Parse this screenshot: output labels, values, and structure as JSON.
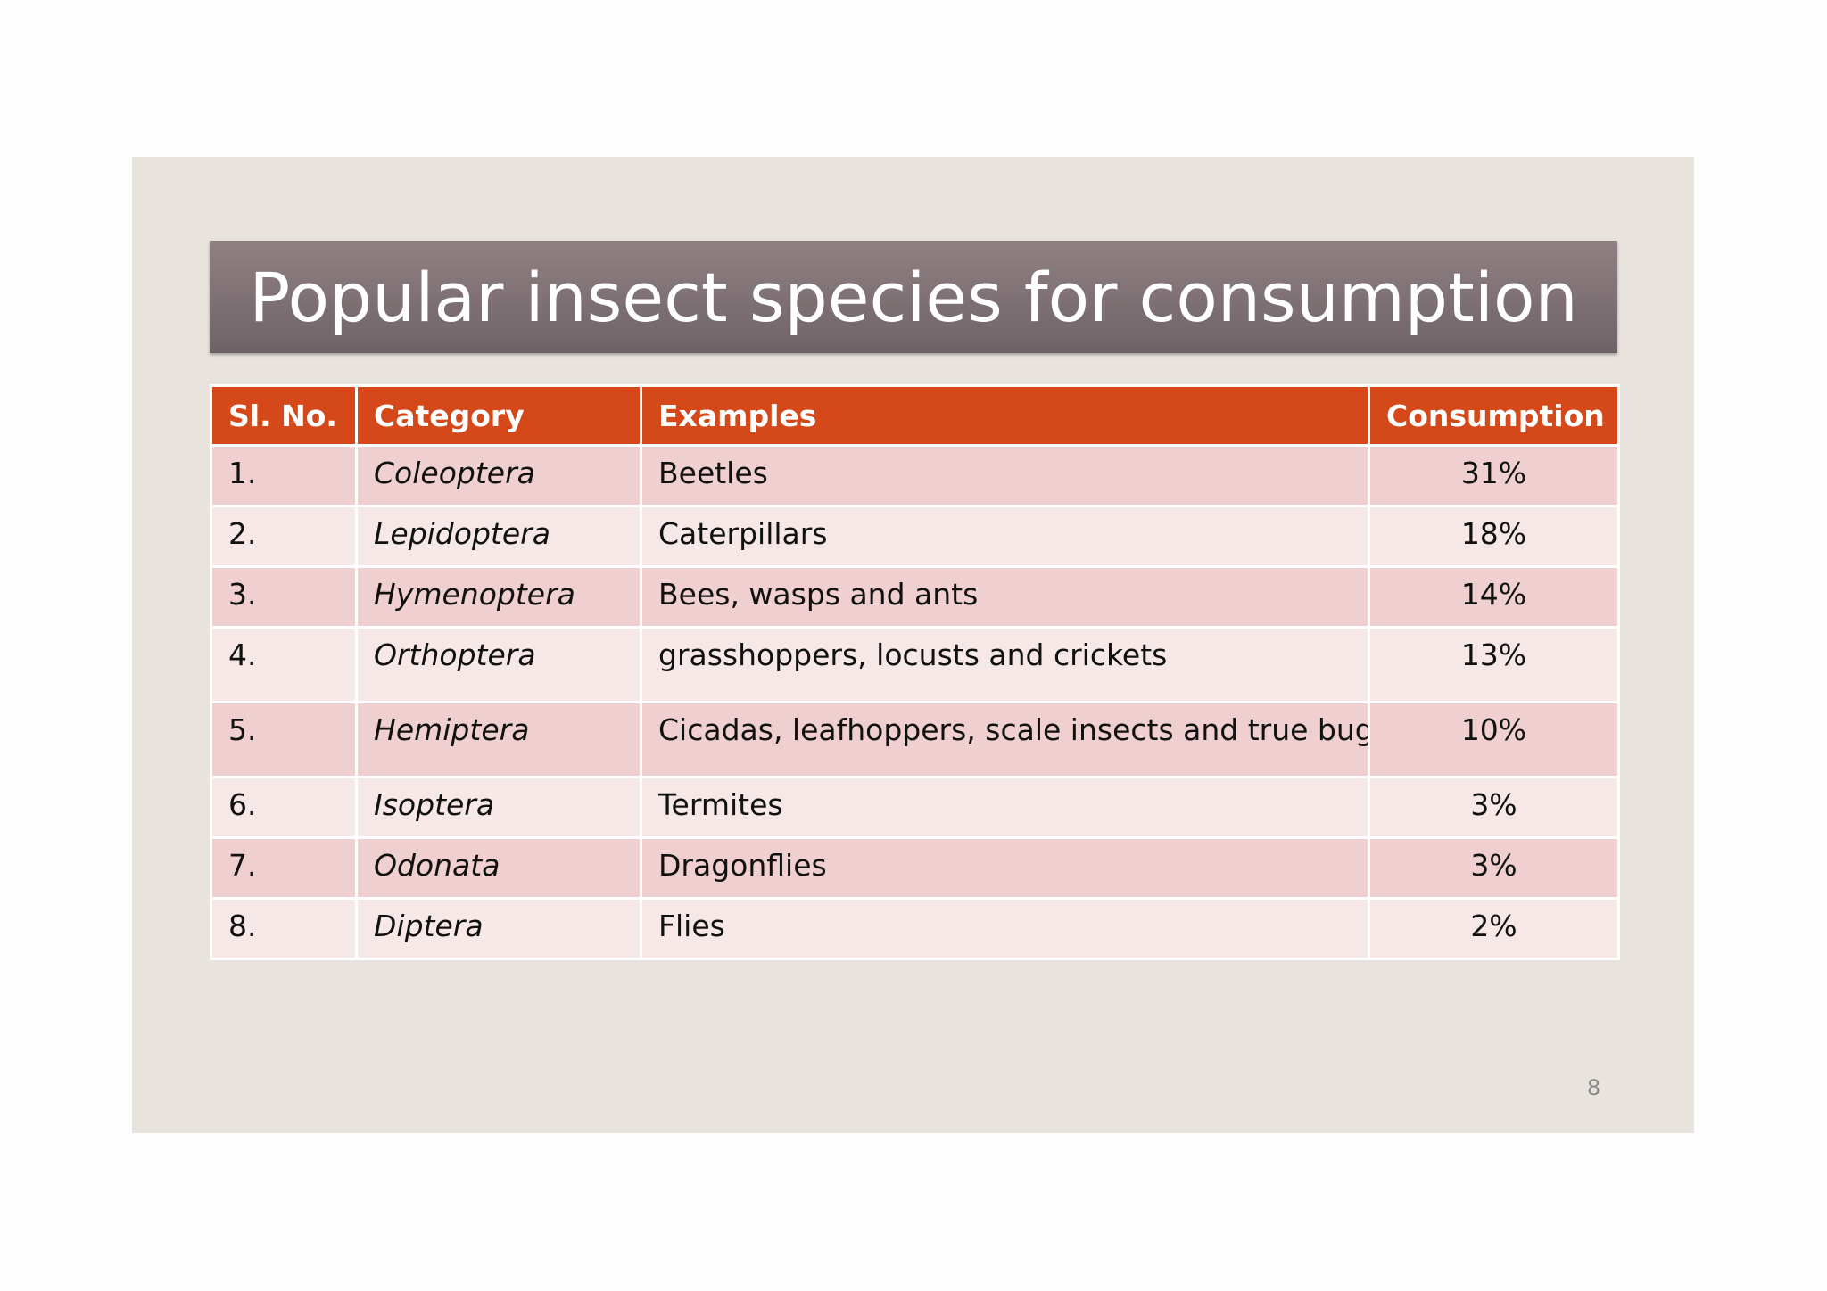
{
  "title": "Popular insect species for consumption",
  "table": {
    "header": [
      "Sl. No.",
      "Category",
      "Examples",
      "Consumption"
    ],
    "rows": [
      [
        "1.",
        "Coleoptera",
        "Beetles",
        "31%"
      ],
      [
        "2.",
        "Lepidoptera",
        "Caterpillars",
        "18%"
      ],
      [
        "3.",
        "Hymenoptera",
        "Bees, wasps and ants",
        "14%"
      ],
      [
        "4.",
        "Orthoptera",
        "grasshoppers, locusts and crickets",
        "13%"
      ],
      [
        "5.",
        "Hemiptera",
        "Cicadas, leafhoppers, scale insects and true bugs",
        "10%"
      ],
      [
        "6.",
        "Isoptera",
        "Termites",
        "3%"
      ],
      [
        "7.",
        "Odonata",
        "Dragonflies",
        "3%"
      ],
      [
        "8.",
        "Diptera",
        "Flies",
        "2%"
      ]
    ]
  },
  "page_number": "8"
}
